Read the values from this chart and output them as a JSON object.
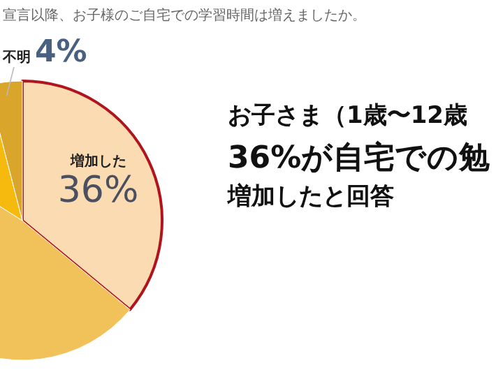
{
  "chart_data": {
    "type": "pie",
    "title": "宣言以降、お子様のご自宅での学習時間は増えましたか。",
    "categories": [
      "増加した",
      null,
      null,
      "不明"
    ],
    "values": [
      36,
      48,
      12,
      4
    ],
    "colors": [
      "#fbdcb2",
      "#f2c25a",
      "#f6b90e",
      "#d9a52a"
    ],
    "value_labels": [
      "36%",
      null,
      null,
      "4%"
    ],
    "annotations": [
      "お子さま（1歳〜12歳",
      "36%が自宅での勉",
      "増加したと回答"
    ]
  }
}
